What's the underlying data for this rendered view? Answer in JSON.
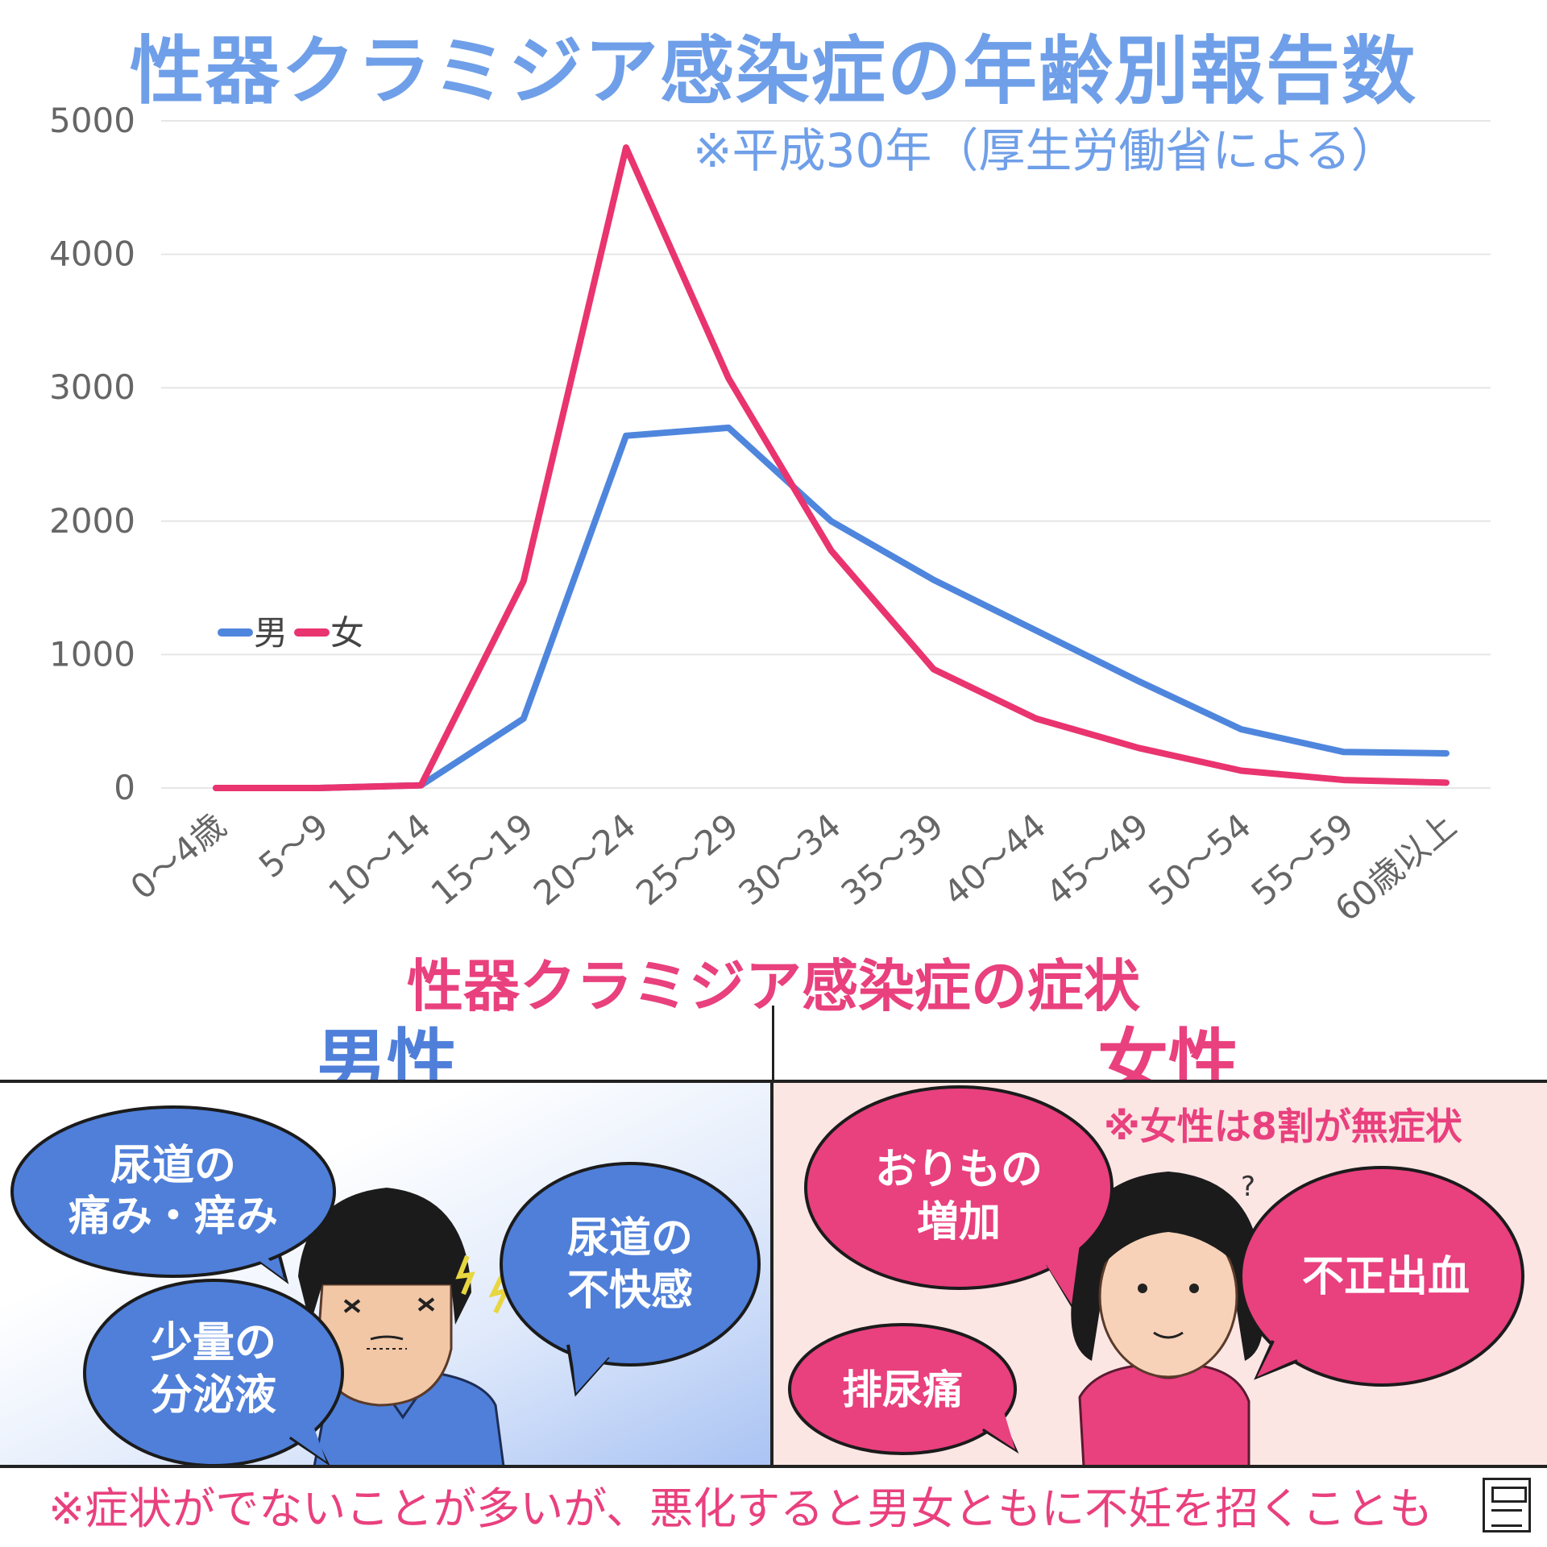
{
  "title": "性器クラミジア感染症の年齢別報告数",
  "note": "※平成30年（厚生労働省による）",
  "chart_data": {
    "type": "line",
    "categories": [
      "0～4歳",
      "5～9",
      "10～14",
      "15～19",
      "20～24",
      "25～29",
      "30～34",
      "35～39",
      "40～44",
      "45～49",
      "50～54",
      "55～59",
      "60歳以上"
    ],
    "series": [
      {
        "name": "男",
        "color": "#4f86dd",
        "values": [
          0,
          0,
          20,
          520,
          2640,
          2700,
          2000,
          1560,
          1180,
          800,
          440,
          270,
          260
        ]
      },
      {
        "name": "女",
        "color": "#e9346f",
        "values": [
          0,
          0,
          20,
          1550,
          4800,
          3070,
          1780,
          890,
          520,
          300,
          130,
          60,
          40
        ]
      }
    ],
    "yticks": [
      0,
      1000,
      2000,
      3000,
      4000,
      5000
    ],
    "ylim": [
      0,
      5000
    ],
    "grid": true,
    "legend_placement": "left"
  },
  "symptoms": {
    "title": "性器クラミジア感染症の症状",
    "male": {
      "heading": "男性",
      "bubbles": [
        {
          "line1": "尿道の",
          "line2": "痛み・痒み"
        },
        {
          "line1": "尿道の",
          "line2": "不快感"
        },
        {
          "line1": "少量の",
          "line2": "分泌液"
        }
      ]
    },
    "female": {
      "heading": "女性",
      "note": "※女性は8割が無症状",
      "bubbles": [
        {
          "line1": "おりもの",
          "line2": "増加"
        },
        {
          "line1": "不正出血"
        },
        {
          "line1": "排尿痛"
        }
      ],
      "question_mark": "?"
    }
  },
  "footer": "※症状がでないことが多いが、悪化すると男女ともに不妊を招くことも",
  "colors": {
    "male": "#4f7fd9",
    "female": "#e9407e",
    "title_blue": "#6f9fe8",
    "panel_female_bg": "#fbe6e4"
  }
}
